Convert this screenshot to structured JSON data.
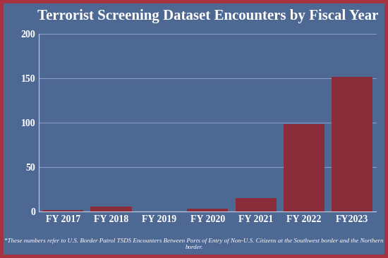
{
  "chart_data": {
    "type": "bar",
    "title": "Terrorist Screening Dataset Encounters by Fiscal Year",
    "categories": [
      "FY 2017",
      "FY 2018",
      "FY 2019",
      "FY 2020",
      "FY 2021",
      "FY 2022",
      "FY2023"
    ],
    "values": [
      2,
      6,
      0,
      3,
      15,
      98,
      151
    ],
    "color": "#8b2c3b",
    "ylim": [
      0,
      200
    ],
    "yticks": [
      0,
      50,
      100,
      150,
      200
    ],
    "grid": true,
    "annotations": [
      "*These numbers refer to U.S. Border Patrol TSDS Encounters Between Ports of Entry of Non-U.S. Citizens at the Southwest border and the Northern border."
    ]
  }
}
